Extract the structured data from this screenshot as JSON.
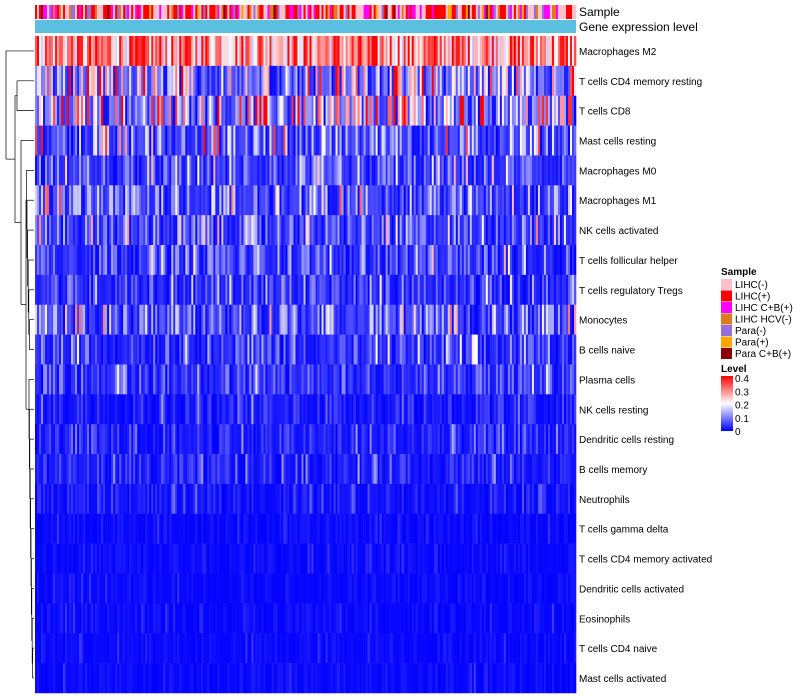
{
  "chart_data": {
    "type": "heatmap",
    "annotations": [
      "Sample",
      "Gene expression level"
    ],
    "rows": [
      {
        "label": "Macrophages M2",
        "mean": 0.28
      },
      {
        "label": "T cells CD4 memory resting",
        "mean": 0.14
      },
      {
        "label": "T cells CD8",
        "mean": 0.17
      },
      {
        "label": "Mast cells resting",
        "mean": 0.09
      },
      {
        "label": "Macrophages M0",
        "mean": 0.06
      },
      {
        "label": "Macrophages M1",
        "mean": 0.08
      },
      {
        "label": "NK cells activated",
        "mean": 0.07
      },
      {
        "label": "T cells follicular helper",
        "mean": 0.06
      },
      {
        "label": "T cells regulatory  Tregs",
        "mean": 0.05
      },
      {
        "label": "Monocytes",
        "mean": 0.08
      },
      {
        "label": "B cells naive",
        "mean": 0.05
      },
      {
        "label": "Plasma cells",
        "mean": 0.05
      },
      {
        "label": "NK cells resting",
        "mean": 0.03
      },
      {
        "label": "Dendritic cells resting",
        "mean": 0.03
      },
      {
        "label": "B cells memory",
        "mean": 0.03
      },
      {
        "label": "Neutrophils",
        "mean": 0.02
      },
      {
        "label": "T cells gamma delta",
        "mean": 0.01
      },
      {
        "label": "T cells CD4 memory activated",
        "mean": 0.01
      },
      {
        "label": "Dendritic cells activated",
        "mean": 0.01
      },
      {
        "label": "Eosinophils",
        "mean": 0.01
      },
      {
        "label": "T cells CD4 naive",
        "mean": 0.01
      },
      {
        "label": "Mast cells activated",
        "mean": 0.01
      }
    ],
    "sample_legend": {
      "title": "Sample",
      "entries": [
        {
          "label": "LIHC(-)",
          "color": "#ffc0cb"
        },
        {
          "label": "LIHC(+)",
          "color": "#ff0000"
        },
        {
          "label": "LIHC C+B(+)",
          "color": "#ff00ff"
        },
        {
          "label": "LIHC HCV(-)",
          "color": "#e07a1f"
        },
        {
          "label": "Para(-)",
          "color": "#9370db"
        },
        {
          "label": "Para(+)",
          "color": "#ffa500"
        },
        {
          "label": "Para C+B(+)",
          "color": "#8b0000"
        }
      ]
    },
    "level_legend": {
      "title": "Level",
      "ticks": [
        "0.4",
        "0.3",
        "0.2",
        "0.1",
        "0"
      ],
      "range": [
        0,
        0.4
      ],
      "colors": [
        "#0000ff",
        "#ffffff",
        "#ff0000"
      ]
    },
    "gene_expression_color": "#5bc0e0"
  }
}
